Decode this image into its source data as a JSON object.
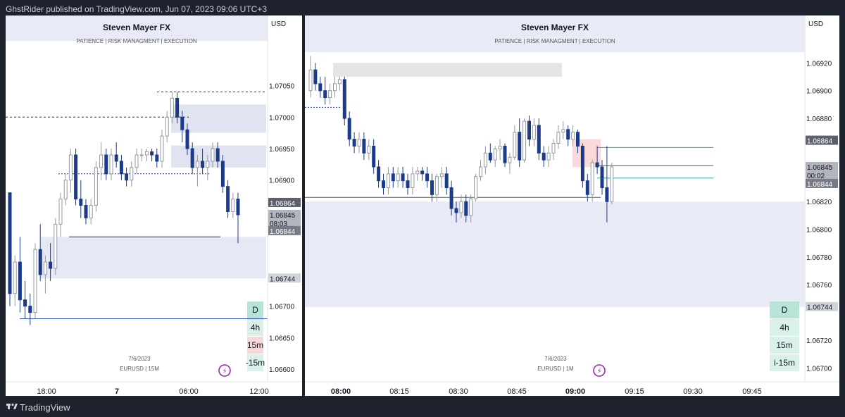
{
  "publish_bar": "GhstRider published on TradingView.com, Jun 07, 2023 09:06 UTC+3",
  "footer": {
    "brand": "TradingView"
  },
  "chart_data": [
    {
      "type": "candlestick",
      "title": "Steven Mayer FX",
      "subtitle": "PATIENCE  |  RISK MANAGMENT  |  EXECUTION",
      "currency": "USD",
      "watermark_date": "7/6/2023",
      "watermark_symbol": "EURUSD | 15M",
      "ylim": [
        1.0658,
        1.0713
      ],
      "y_ticks": [
        "1.07050",
        "1.07000",
        "1.06950",
        "1.06900",
        "1.06864",
        "1.06845",
        "08:03",
        "1.06844",
        "1.06744",
        "1.06700",
        "1.06650",
        "1.06600"
      ],
      "x_ticks": [
        "18:00",
        "7",
        "06:00",
        "12:00"
      ],
      "timeframes": [
        "D",
        "4h",
        "15m",
        "-15m"
      ],
      "price_tags": {
        "last": "1.06864",
        "current": "1.06845",
        "countdown": "08:03",
        "bid": "1.06844",
        "level": "1.06744"
      },
      "series": [
        {
          "values": [
            [
              1.0688,
              1.0688,
              1.067,
              1.0672
            ],
            [
              1.0672,
              1.0678,
              1.067,
              1.0677
            ],
            [
              1.0677,
              1.0681,
              1.0669,
              1.0671
            ],
            [
              1.0671,
              1.0674,
              1.0668,
              1.067
            ],
            [
              1.067,
              1.0672,
              1.0667,
              1.0669
            ],
            [
              1.0669,
              1.068,
              1.0668,
              1.0679
            ],
            [
              1.0679,
              1.0683,
              1.0674,
              1.0675
            ],
            [
              1.0675,
              1.0678,
              1.0672,
              1.0677
            ],
            [
              1.0677,
              1.068,
              1.0674,
              1.0676
            ],
            [
              1.0676,
              1.0684,
              1.0675,
              1.0683
            ],
            [
              1.0683,
              1.0688,
              1.0681,
              1.0687
            ],
            [
              1.0687,
              1.0691,
              1.0686,
              1.069
            ],
            [
              1.069,
              1.0695,
              1.0688,
              1.0694
            ],
            [
              1.0694,
              1.0695,
              1.0686,
              1.0687
            ],
            [
              1.0687,
              1.069,
              1.0684,
              1.0686
            ],
            [
              1.0686,
              1.0687,
              1.0683,
              1.0684
            ],
            [
              1.0684,
              1.0687,
              1.0683,
              1.0686
            ],
            [
              1.0686,
              1.0693,
              1.0685,
              1.0692
            ],
            [
              1.0692,
              1.0696,
              1.069,
              1.0694
            ],
            [
              1.0694,
              1.0695,
              1.069,
              1.0691
            ],
            [
              1.0691,
              1.0695,
              1.069,
              1.0694
            ],
            [
              1.0694,
              1.0696,
              1.0692,
              1.0693
            ],
            [
              1.0693,
              1.0694,
              1.069,
              1.0691
            ],
            [
              1.0691,
              1.0692,
              1.0689,
              1.069
            ],
            [
              1.069,
              1.0693,
              1.0689,
              1.0692
            ],
            [
              1.0692,
              1.0695,
              1.0691,
              1.0694
            ],
            [
              1.0694,
              1.0695,
              1.0693,
              1.0694
            ],
            [
              1.0694,
              1.0695,
              1.0693,
              1.06945
            ],
            [
              1.06945,
              1.0695,
              1.0693,
              1.0694
            ],
            [
              1.0694,
              1.0695,
              1.0692,
              1.0693
            ],
            [
              1.0693,
              1.0698,
              1.0692,
              1.0697
            ],
            [
              1.0697,
              1.0701,
              1.0696,
              1.07
            ],
            [
              1.07,
              1.0704,
              1.0699,
              1.0703
            ],
            [
              1.0703,
              1.0704,
              1.0699,
              1.07
            ],
            [
              1.07,
              1.0701,
              1.0696,
              1.0698
            ],
            [
              1.0698,
              1.0699,
              1.0694,
              1.0695
            ],
            [
              1.0695,
              1.0696,
              1.0691,
              1.0692
            ],
            [
              1.0692,
              1.0694,
              1.0689,
              1.0693
            ],
            [
              1.0693,
              1.0695,
              1.0691,
              1.0692
            ],
            [
              1.0692,
              1.0694,
              1.069,
              1.0693
            ],
            [
              1.0693,
              1.0696,
              1.0692,
              1.0695
            ],
            [
              1.0695,
              1.0696,
              1.0692,
              1.0693
            ],
            [
              1.0693,
              1.0694,
              1.0688,
              1.0689
            ],
            [
              1.0689,
              1.069,
              1.0684,
              1.0685
            ],
            [
              1.0685,
              1.0688,
              1.0684,
              1.0687
            ],
            [
              1.0687,
              1.0688,
              1.068,
              1.06845
            ]
          ]
        }
      ],
      "zones": [
        {
          "from": 1.06744,
          "to": 1.0681
        },
        {
          "from": 1.06975,
          "to": 1.0702
        },
        {
          "from": 1.0692,
          "to": 1.06955
        }
      ],
      "levels": [
        1.0704,
        1.07,
        1.0691,
        1.0681,
        1.0668
      ]
    },
    {
      "type": "candlestick",
      "title": "Steven Mayer FX",
      "subtitle": "PATIENCE  |  RISK MANAGMENT  |  EXECUTION",
      "currency": "USD",
      "watermark_date": "7/6/2023",
      "watermark_symbol": "EURUSD | 1M",
      "ylim": [
        1.0669,
        1.0694
      ],
      "y_ticks": [
        "1.06920",
        "1.06900",
        "1.06880",
        "1.06864",
        "1.06845",
        "00:02",
        "1.06844",
        "1.06820",
        "1.06800",
        "1.06780",
        "1.06760",
        "1.06744",
        "1.06720",
        "1.06700"
      ],
      "x_ticks": [
        "08:00",
        "08:15",
        "08:30",
        "08:45",
        "09:00",
        "09:15",
        "09:30",
        "09:45"
      ],
      "timeframes": [
        "D",
        "4h",
        "15m",
        "i-15m"
      ],
      "price_tags": {
        "last": "1.06864",
        "current": "1.06845",
        "countdown": "00:02",
        "bid": "1.06844",
        "level": "1.06744"
      },
      "series": [
        {
          "values": [
            [
              1.069,
              1.06925,
              1.06895,
              1.06915
            ],
            [
              1.06915,
              1.0692,
              1.069,
              1.06905
            ],
            [
              1.06905,
              1.0691,
              1.06895,
              1.069
            ],
            [
              1.069,
              1.0691,
              1.0689,
              1.06895
            ],
            [
              1.06895,
              1.06905,
              1.0689,
              1.069
            ],
            [
              1.069,
              1.0691,
              1.06895,
              1.06905
            ],
            [
              1.06905,
              1.0691,
              1.069,
              1.06908
            ],
            [
              1.06908,
              1.0691,
              1.06875,
              1.0688
            ],
            [
              1.0688,
              1.06885,
              1.0686,
              1.06865
            ],
            [
              1.06865,
              1.0687,
              1.06855,
              1.0686
            ],
            [
              1.0686,
              1.0687,
              1.06855,
              1.06865
            ],
            [
              1.06865,
              1.0687,
              1.0685,
              1.06855
            ],
            [
              1.06855,
              1.06865,
              1.0685,
              1.0686
            ],
            [
              1.0686,
              1.06865,
              1.0684,
              1.06845
            ],
            [
              1.06845,
              1.0685,
              1.0683,
              1.06835
            ],
            [
              1.06835,
              1.0684,
              1.06825,
              1.0683
            ],
            [
              1.0683,
              1.06845,
              1.06825,
              1.0684
            ],
            [
              1.0684,
              1.06845,
              1.0683,
              1.06835
            ],
            [
              1.06835,
              1.06845,
              1.0683,
              1.0684
            ],
            [
              1.0684,
              1.06845,
              1.0683,
              1.06835
            ],
            [
              1.06835,
              1.0684,
              1.06825,
              1.0683
            ],
            [
              1.0683,
              1.06845,
              1.06825,
              1.0684
            ],
            [
              1.0684,
              1.06845,
              1.06835,
              1.06842
            ],
            [
              1.06842,
              1.06845,
              1.06835,
              1.0684
            ],
            [
              1.0684,
              1.06845,
              1.0683,
              1.06835
            ],
            [
              1.06835,
              1.0684,
              1.0682,
              1.06825
            ],
            [
              1.06825,
              1.0684,
              1.0682,
              1.06838
            ],
            [
              1.06838,
              1.06845,
              1.0683,
              1.0684
            ],
            [
              1.0684,
              1.06845,
              1.06825,
              1.0683
            ],
            [
              1.0683,
              1.06835,
              1.0681,
              1.06815
            ],
            [
              1.06815,
              1.0682,
              1.06805,
              1.06812
            ],
            [
              1.06812,
              1.06825,
              1.06808,
              1.0682
            ],
            [
              1.0682,
              1.06825,
              1.06805,
              1.0681
            ],
            [
              1.0681,
              1.06825,
              1.06805,
              1.06822
            ],
            [
              1.06822,
              1.0684,
              1.0682,
              1.06838
            ],
            [
              1.06838,
              1.0685,
              1.06835,
              1.06845
            ],
            [
              1.06845,
              1.0686,
              1.0684,
              1.06855
            ],
            [
              1.06855,
              1.06862,
              1.06848,
              1.0685
            ],
            [
              1.0685,
              1.0686,
              1.06845,
              1.06858
            ],
            [
              1.06858,
              1.06865,
              1.0685,
              1.0686
            ],
            [
              1.0686,
              1.06862,
              1.06845,
              1.06848
            ],
            [
              1.06848,
              1.06855,
              1.0684,
              1.06852
            ],
            [
              1.06852,
              1.06875,
              1.0685,
              1.0687
            ],
            [
              1.0687,
              1.0688,
              1.06845,
              1.0685
            ],
            [
              1.0685,
              1.0688,
              1.06848,
              1.06878
            ],
            [
              1.06878,
              1.06882,
              1.0686,
              1.06865
            ],
            [
              1.06865,
              1.0688,
              1.0686,
              1.06875
            ],
            [
              1.06875,
              1.0688,
              1.0685,
              1.06855
            ],
            [
              1.06855,
              1.0686,
              1.06845,
              1.0685
            ],
            [
              1.0685,
              1.0686,
              1.06845,
              1.06855
            ],
            [
              1.06855,
              1.06865,
              1.0685,
              1.06862
            ],
            [
              1.06862,
              1.06875,
              1.06858,
              1.0687
            ],
            [
              1.0687,
              1.06878,
              1.06865,
              1.06872
            ],
            [
              1.06872,
              1.06875,
              1.0686,
              1.06865
            ],
            [
              1.06865,
              1.06875,
              1.0686,
              1.0687
            ],
            [
              1.0687,
              1.06872,
              1.06855,
              1.0686
            ],
            [
              1.0686,
              1.06862,
              1.0683,
              1.06835
            ],
            [
              1.06835,
              1.0684,
              1.0682,
              1.06825
            ],
            [
              1.06825,
              1.0685,
              1.0682,
              1.06848
            ],
            [
              1.06848,
              1.0686,
              1.0684,
              1.06845
            ],
            [
              1.06845,
              1.0685,
              1.06825,
              1.0683
            ],
            [
              1.0683,
              1.0686,
              1.06805,
              1.0682
            ],
            [
              1.0682,
              1.06848,
              1.06818,
              1.06845
            ]
          ]
        }
      ],
      "zones": [
        {
          "from": 1.06744,
          "to": 1.0682
        },
        {
          "from": 1.0691,
          "to": 1.0692
        },
        {
          "from": 1.06845,
          "to": 1.06865
        }
      ],
      "levels": [
        1.06888,
        1.06823,
        1.06859,
        1.06846,
        1.06837
      ]
    }
  ]
}
